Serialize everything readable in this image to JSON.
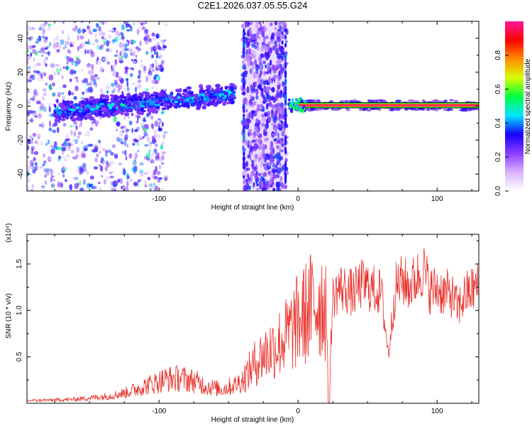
{
  "title": "C2E1.2026.037.05.55.G24",
  "colors": {
    "snr_line": "#e8302a",
    "ridge": "#f03060",
    "ridge_edge": "#0a0a0a"
  },
  "chart_data": [
    {
      "type": "heatmap",
      "xlabel": "Height of straight line (km)",
      "ylabel": "Frequency (Hz)",
      "xlim": [
        -195,
        130
      ],
      "ylim": [
        -50,
        50
      ],
      "xticks": [
        -100,
        0,
        100
      ],
      "yticks": [
        -40,
        -20,
        0,
        20,
        40
      ],
      "colorbar": {
        "label": "Normalized spectral amplitude",
        "range": [
          0,
          1
        ],
        "ticks": [
          0.0,
          0.2,
          0.4,
          0.6,
          0.8
        ],
        "tick_labels": [
          "0.0",
          "0.2",
          "0.4",
          "0.6",
          "0.8"
        ],
        "colormap": [
          "#ffffff",
          "#d9b3ff",
          "#8b3dff",
          "#1a00ff",
          "#00e6ff",
          "#00ff40",
          "#d8ff00",
          "#ff8c00",
          "#ff0000",
          "#ff1aa0"
        ]
      },
      "features": [
        {
          "label": "noise",
          "x_range": [
            -195,
            -95
          ],
          "freq_center": 0,
          "freq_spread": 50,
          "amplitude": 0.2
        },
        {
          "label": "rising-trace",
          "x_range": [
            -175,
            -45
          ],
          "freq_start": -3,
          "freq_end": 7,
          "amplitude": 0.35
        },
        {
          "label": "broadband-burst",
          "x_range": [
            -40,
            -8
          ],
          "freq_center": 0,
          "freq_spread": 50,
          "amplitude": 0.15
        },
        {
          "label": "tone",
          "x_range": [
            -7,
            130
          ],
          "freq": 0.5,
          "amplitude": 0.95
        }
      ]
    },
    {
      "type": "line",
      "xlabel": "Height of straight line (km)",
      "ylabel": "SNR (10 * v/v)",
      "y_multiplier": "(x10⁴)",
      "xlim": [
        -195,
        130
      ],
      "ylim": [
        0,
        18200
      ],
      "xticks": [
        -100,
        0,
        100
      ],
      "yticks": [
        5000,
        10000,
        15000
      ],
      "ytick_labels": [
        "0.5",
        "1.0",
        "1.5"
      ],
      "series": [
        {
          "x": [
            -195,
            -185,
            -175,
            -165,
            -155,
            -145,
            -135,
            -125,
            -115,
            -105,
            -95,
            -85,
            -75,
            -65,
            -55,
            -45,
            -40,
            -35,
            -30,
            -25,
            -20,
            -15,
            -10,
            -5,
            0,
            5,
            10,
            15,
            20,
            22,
            25,
            30,
            35,
            40,
            45,
            50,
            55,
            60,
            65,
            70,
            75,
            80,
            85,
            90,
            95,
            100,
            105,
            110,
            115,
            120,
            125,
            130
          ],
          "y": [
            300,
            320,
            350,
            400,
            500,
            650,
            800,
            1100,
            1600,
            2100,
            2600,
            2700,
            2400,
            1800,
            1500,
            2000,
            2500,
            3500,
            4500,
            5200,
            5800,
            6300,
            7000,
            7800,
            8800,
            9600,
            10500,
            11000,
            10800,
            100,
            11400,
            12500,
            12200,
            11800,
            12800,
            12600,
            12200,
            11900,
            5200,
            12400,
            13200,
            12600,
            13400,
            14500,
            12200,
            12300,
            11900,
            11800,
            10200,
            11600,
            12200,
            12600
          ]
        }
      ]
    }
  ]
}
